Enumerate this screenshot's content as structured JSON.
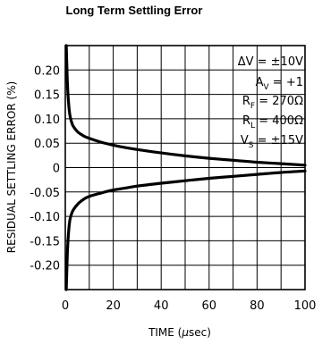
{
  "chart_data": {
    "type": "line",
    "title": "Long Term Settling Error",
    "xlabel_prefix": "TIME (",
    "xlabel_mu": "μ",
    "xlabel_suffix": "sec)",
    "ylabel": "RESIDUAL SETTLING ERROR (%)",
    "xlim": [
      0,
      100
    ],
    "ylim": [
      -0.25,
      0.25
    ],
    "x_ticks": [
      "0",
      "20",
      "40",
      "60",
      "80",
      "100"
    ],
    "x_tick_values": [
      0,
      20,
      40,
      60,
      80,
      100
    ],
    "y_ticks": [
      "0.20",
      "0.15",
      "0.10",
      "0.05",
      "0",
      "-0.05",
      "-0.10",
      "-0.15",
      "-0.20"
    ],
    "y_tick_values": [
      0.2,
      0.15,
      0.1,
      0.05,
      0,
      -0.05,
      -0.1,
      -0.15,
      -0.2
    ],
    "grid": true,
    "conditions": {
      "dv": {
        "main": "ΔV = ±10V"
      },
      "av": {
        "prefix": "A",
        "sub": "V",
        "suffix": " = +1"
      },
      "rf": {
        "prefix": "R",
        "sub": "F",
        "suffix": " = 270Ω"
      },
      "rl": {
        "prefix": "R",
        "sub": "L",
        "suffix": " = 400Ω"
      },
      "vs": {
        "prefix": "V",
        "sub": "S",
        "suffix": " = ±15V"
      }
    },
    "series": [
      {
        "x": [
          0.4,
          0.7,
          1,
          1.5,
          2,
          3,
          4,
          5,
          6,
          8,
          10,
          15,
          20,
          25,
          30,
          40,
          50,
          60,
          70,
          80,
          90,
          100
        ],
        "y": [
          0.25,
          0.2,
          0.16,
          0.125,
          0.105,
          0.088,
          0.08,
          0.074,
          0.07,
          0.064,
          0.06,
          0.052,
          0.046,
          0.041,
          0.037,
          0.03,
          0.024,
          0.019,
          0.015,
          0.011,
          0.008,
          0.005
        ]
      },
      {
        "x": [
          0.4,
          0.7,
          1,
          1.5,
          2,
          3,
          4,
          5,
          6,
          8,
          10,
          15,
          20,
          25,
          30,
          40,
          50,
          60,
          70,
          80,
          90,
          100
        ],
        "y": [
          -0.25,
          -0.2,
          -0.16,
          -0.125,
          -0.105,
          -0.09,
          -0.082,
          -0.076,
          -0.071,
          -0.064,
          -0.059,
          -0.052,
          -0.046,
          -0.042,
          -0.038,
          -0.032,
          -0.027,
          -0.022,
          -0.018,
          -0.014,
          -0.01,
          -0.007
        ]
      }
    ]
  }
}
